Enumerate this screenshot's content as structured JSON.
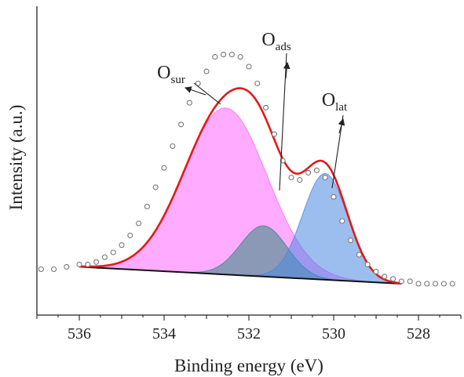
{
  "chart_data": {
    "type": "area",
    "xlabel": "Binding energy (eV)",
    "ylabel": "Intensity (a.u.)",
    "xlim": [
      537,
      527
    ],
    "x_reversed": true,
    "ylim": [
      -0.18,
      1.1
    ],
    "x_ticks": [
      536,
      534,
      532,
      530,
      528
    ],
    "y_ticks_shown": false,
    "grid": false,
    "legend": "none",
    "baseline": {
      "x_start": 536.0,
      "y_start": 0.02,
      "x_end": 528.4,
      "y_end": -0.05
    },
    "peaks": [
      {
        "label": "O_sur",
        "center": 532.55,
        "height": 0.69,
        "sigma": 0.98,
        "color": "#ff66ff"
      },
      {
        "label": "O_ads",
        "center": 531.65,
        "height": 0.21,
        "sigma": 0.55,
        "color": "#2e8b7a"
      },
      {
        "label": "O_lat",
        "center": 530.2,
        "height": 0.44,
        "sigma": 0.53,
        "color": "#4a88e0"
      }
    ],
    "series": [
      {
        "kind": "fit_envelope",
        "color": "#e01b1b"
      },
      {
        "kind": "raw_data",
        "color": "#777777",
        "x": [
          536.9,
          536.6,
          536.3,
          536.0,
          535.8,
          535.6,
          535.4,
          535.2,
          535.0,
          534.8,
          534.6,
          534.4,
          534.2,
          534.0,
          533.8,
          533.6,
          533.4,
          533.2,
          533.0,
          532.8,
          532.6,
          532.4,
          532.2,
          532.0,
          531.8,
          531.6,
          531.4,
          531.2,
          531.0,
          530.8,
          530.6,
          530.4,
          530.2,
          530.0,
          529.8,
          529.6,
          529.4,
          529.2,
          529.0,
          528.8,
          528.6,
          528.4,
          528.2,
          528.0,
          527.8,
          527.6,
          527.4,
          527.2
        ],
        "y": [
          0.01,
          0.01,
          0.02,
          0.03,
          0.03,
          0.04,
          0.06,
          0.08,
          0.11,
          0.15,
          0.2,
          0.27,
          0.35,
          0.43,
          0.52,
          0.61,
          0.7,
          0.78,
          0.83,
          0.89,
          0.9,
          0.9,
          0.89,
          0.85,
          0.78,
          0.68,
          0.57,
          0.46,
          0.39,
          0.38,
          0.41,
          0.42,
          0.39,
          0.31,
          0.21,
          0.13,
          0.07,
          0.03,
          0.0,
          -0.02,
          -0.03,
          -0.04,
          -0.04,
          -0.05,
          -0.05,
          -0.05,
          -0.05,
          -0.05
        ]
      }
    ],
    "annotations": [
      {
        "main": "O",
        "sub": "sur",
        "points_to": "O_sur"
      },
      {
        "main": "O",
        "sub": "ads",
        "points_to": "O_ads"
      },
      {
        "main": "O",
        "sub": "lat",
        "points_to": "O_lat"
      }
    ]
  }
}
